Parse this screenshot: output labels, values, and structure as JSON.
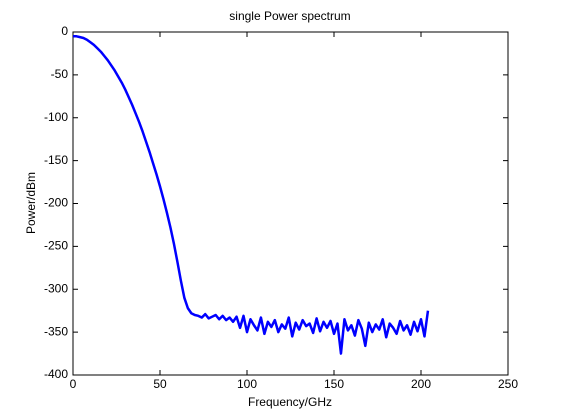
{
  "chart_data": {
    "type": "line",
    "title": "single Power spectrum",
    "x_label": "Frequency/GHz",
    "y_label": "Power/dBm",
    "x": [
      0,
      2,
      4,
      6,
      8,
      10,
      12,
      14,
      16,
      18,
      20,
      22,
      24,
      26,
      28,
      30,
      32,
      34,
      36,
      38,
      40,
      42,
      44,
      46,
      48,
      50,
      52,
      54,
      56,
      58,
      60,
      62,
      64,
      66,
      68,
      70,
      72,
      74,
      76,
      78,
      80,
      82,
      84,
      86,
      88,
      90,
      92,
      94,
      96,
      98,
      100,
      102,
      104,
      106,
      108,
      110,
      112,
      114,
      116,
      118,
      120,
      122,
      124,
      126,
      128,
      130,
      132,
      134,
      136,
      138,
      140,
      142,
      144,
      146,
      148,
      150,
      152,
      154,
      156,
      158,
      160,
      162,
      164,
      166,
      168,
      170,
      172,
      174,
      176,
      178,
      180,
      182,
      184,
      186,
      188,
      190,
      192,
      194,
      196,
      198,
      200,
      202,
      204
    ],
    "series": [
      {
        "color": "#0000ff",
        "values": [
          -5,
          -5,
          -6,
          -7,
          -9,
          -12,
          -15,
          -19,
          -23,
          -28,
          -33,
          -39,
          -45,
          -52,
          -59,
          -67,
          -76,
          -85,
          -95,
          -105,
          -116,
          -128,
          -140,
          -153,
          -166,
          -180,
          -195,
          -211,
          -228,
          -247,
          -268,
          -290,
          -310,
          -322,
          -328,
          -330,
          -331,
          -333,
          -329,
          -334,
          -332,
          -330,
          -335,
          -331,
          -336,
          -333,
          -338,
          -332,
          -345,
          -331,
          -350,
          -335,
          -342,
          -348,
          -333,
          -352,
          -338,
          -344,
          -336,
          -350,
          -341,
          -346,
          -333,
          -355,
          -339,
          -347,
          -336,
          -343,
          -340,
          -351,
          -334,
          -349,
          -338,
          -345,
          -337,
          -352,
          -340,
          -375,
          -335,
          -348,
          -342,
          -354,
          -336,
          -346,
          -366,
          -339,
          -350,
          -341,
          -347,
          -335,
          -356,
          -340,
          -345,
          -352,
          -337,
          -348,
          -342,
          -353,
          -338,
          -349,
          -335,
          -355,
          -325
        ]
      }
    ],
    "xlim": [
      0,
      250
    ],
    "xticks": [
      0,
      50,
      100,
      150,
      200,
      250
    ],
    "ylim": [
      -400,
      0
    ],
    "yticks": [
      0,
      -50,
      -100,
      -150,
      -200,
      -250,
      -300,
      -350,
      -400
    ]
  }
}
